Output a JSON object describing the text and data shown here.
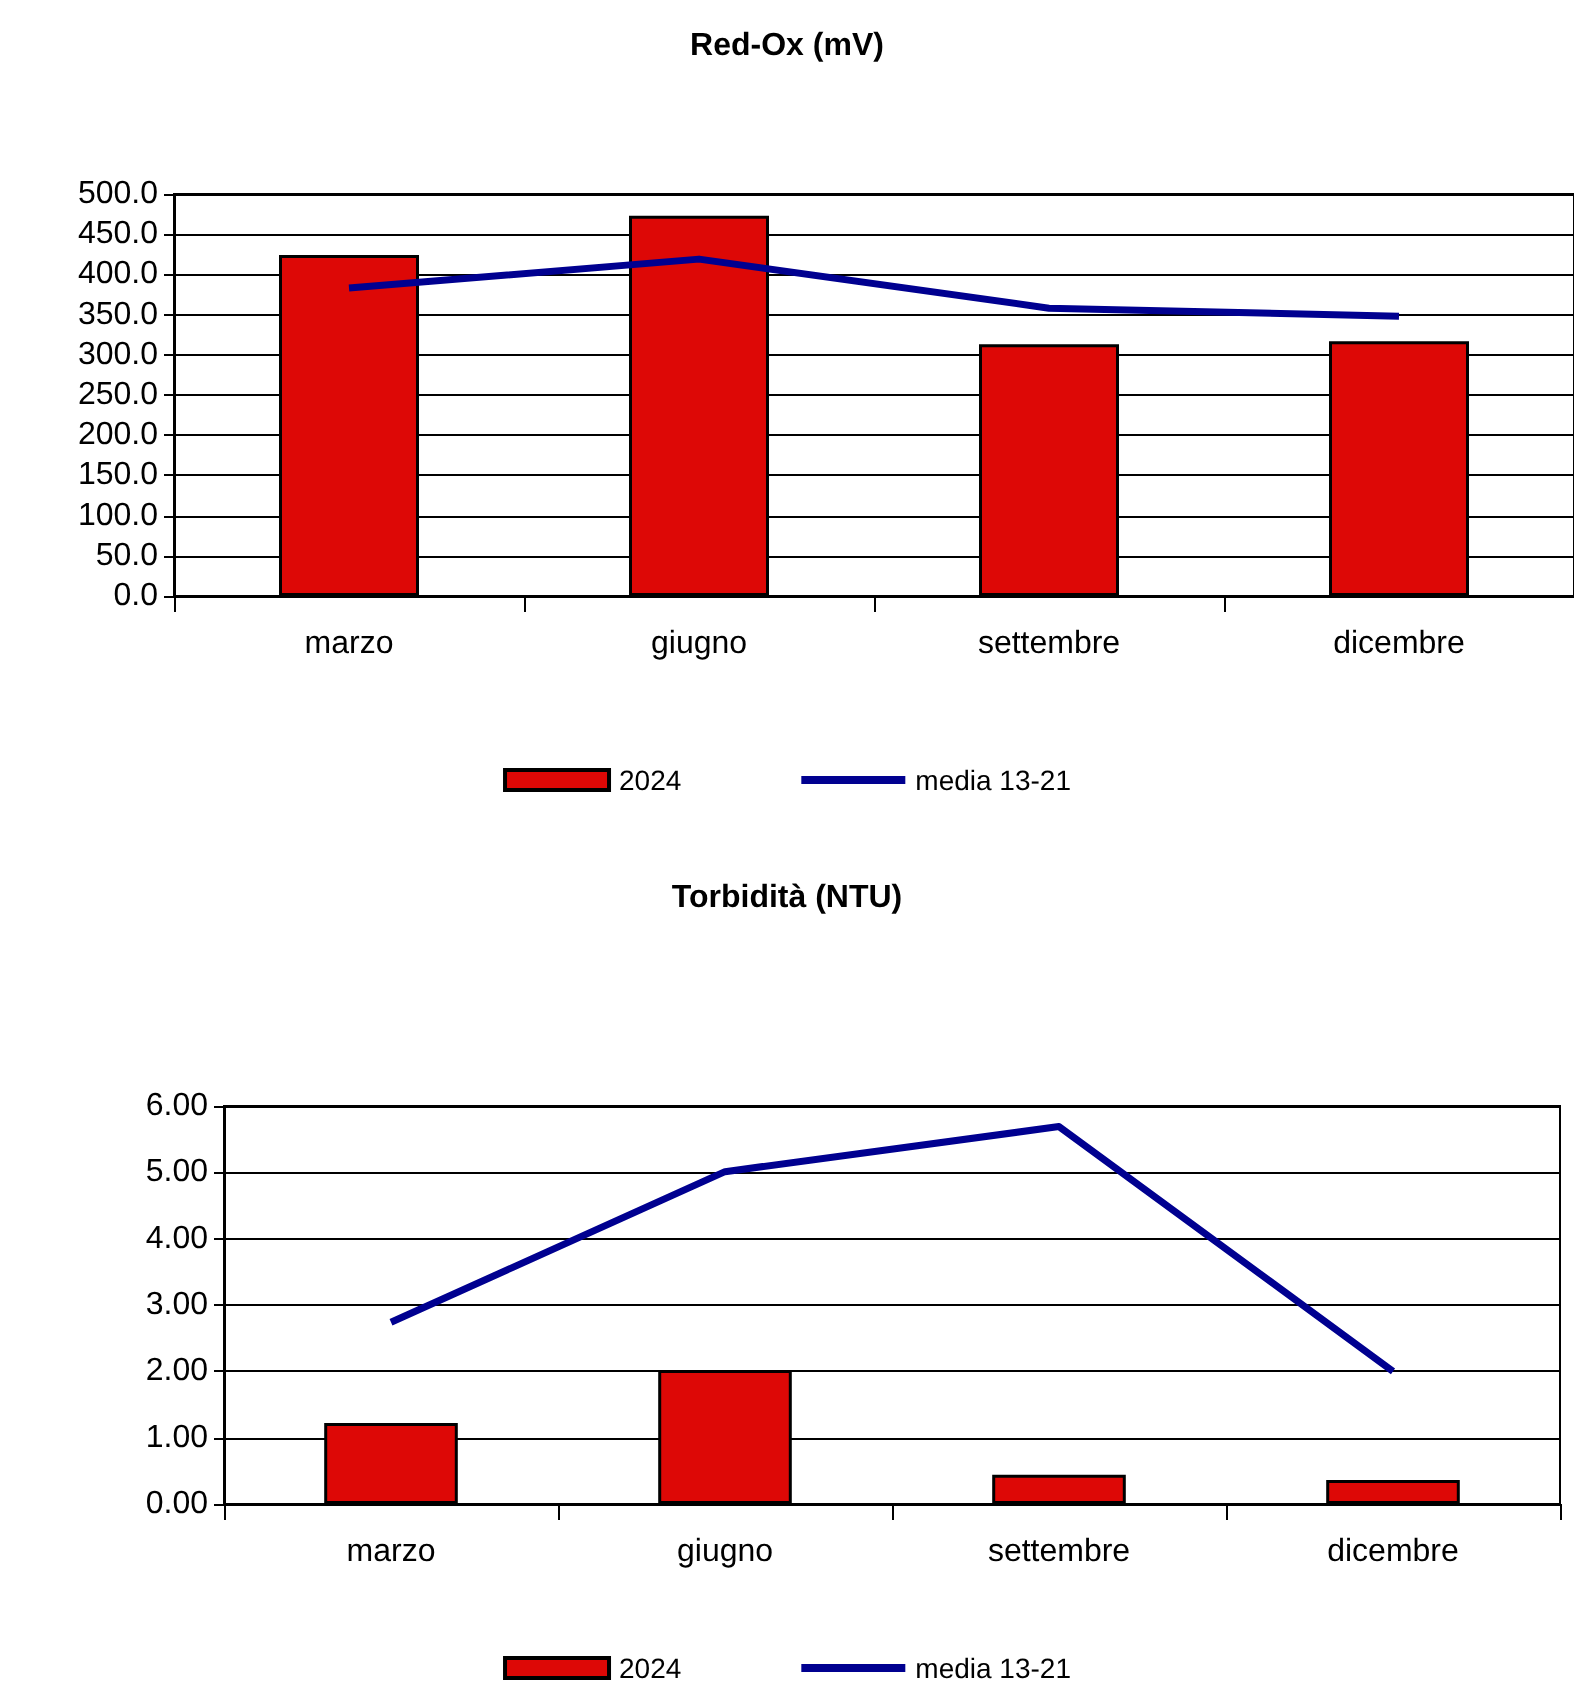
{
  "chart_data": [
    {
      "type": "bar",
      "title": "Red-Ox (mV)",
      "categories": [
        "marzo",
        "giugno",
        "settembre",
        "dicembre"
      ],
      "series": [
        {
          "name": "2024",
          "color": "#dd0806",
          "values": [
            424,
            473,
            313,
            317
          ]
        },
        {
          "name": "media 13-21",
          "type": "line",
          "color": "#000090",
          "values": [
            383,
            419,
            358,
            348
          ]
        }
      ],
      "ylim": [
        0,
        500
      ],
      "yticks": [
        {
          "value": 0,
          "label": "0.0"
        },
        {
          "value": 50,
          "label": "50.0"
        },
        {
          "value": 100,
          "label": "100.0"
        },
        {
          "value": 150,
          "label": "150.0"
        },
        {
          "value": 200,
          "label": "200.0"
        },
        {
          "value": 250,
          "label": "250.0"
        },
        {
          "value": 300,
          "label": "300.0"
        },
        {
          "value": 350,
          "label": "350.0"
        },
        {
          "value": 400,
          "label": "400.0"
        },
        {
          "value": 450,
          "label": "450.0"
        },
        {
          "value": 500,
          "label": "500.0"
        }
      ],
      "grid": "y",
      "legend": "bottom",
      "marker": "none"
    },
    {
      "type": "bar",
      "title": "Torbidità (NTU)",
      "categories": [
        "marzo",
        "giugno",
        "settembre",
        "dicembre"
      ],
      "series": [
        {
          "name": "2024",
          "color": "#dd0806",
          "values": [
            1.22,
            2.02,
            0.44,
            0.36
          ]
        },
        {
          "name": "media 13-21",
          "type": "line",
          "color": "#000090",
          "values": [
            2.74,
            5.01,
            5.69,
            2.0
          ]
        }
      ],
      "ylim": [
        0,
        6
      ],
      "yticks": [
        {
          "value": 0,
          "label": "0.00"
        },
        {
          "value": 1,
          "label": "1.00"
        },
        {
          "value": 2,
          "label": "2.00"
        },
        {
          "value": 3,
          "label": "3.00"
        },
        {
          "value": 4,
          "label": "4.00"
        },
        {
          "value": 5,
          "label": "5.00"
        },
        {
          "value": 6,
          "label": "6.00"
        }
      ],
      "grid": "y",
      "legend": "bottom",
      "marker": "none"
    }
  ]
}
